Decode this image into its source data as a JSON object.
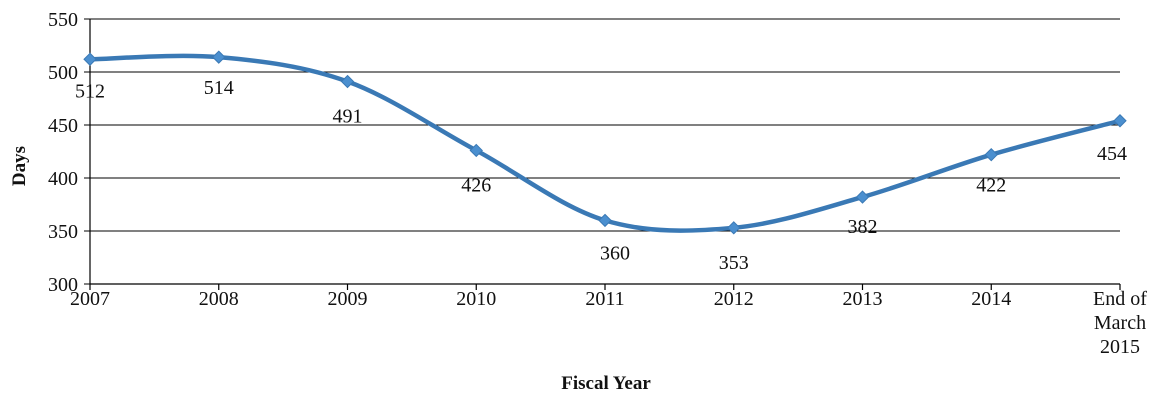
{
  "chart_data": {
    "type": "line",
    "title": "",
    "xlabel": "Fiscal Year",
    "ylabel": "Days",
    "categories": [
      "2007",
      "2008",
      "2009",
      "2010",
      "2011",
      "2012",
      "2013",
      "2014",
      "End of March 2015"
    ],
    "values": [
      512,
      514,
      491,
      426,
      360,
      353,
      382,
      422,
      454
    ],
    "ylim": [
      300,
      550
    ],
    "yticks": [
      "300",
      "350",
      "400",
      "450",
      "500",
      "550"
    ],
    "grid": true,
    "legend": "none",
    "line_color": "#3a79b5",
    "marker_color": "#4b8fcf",
    "smooth": true
  }
}
